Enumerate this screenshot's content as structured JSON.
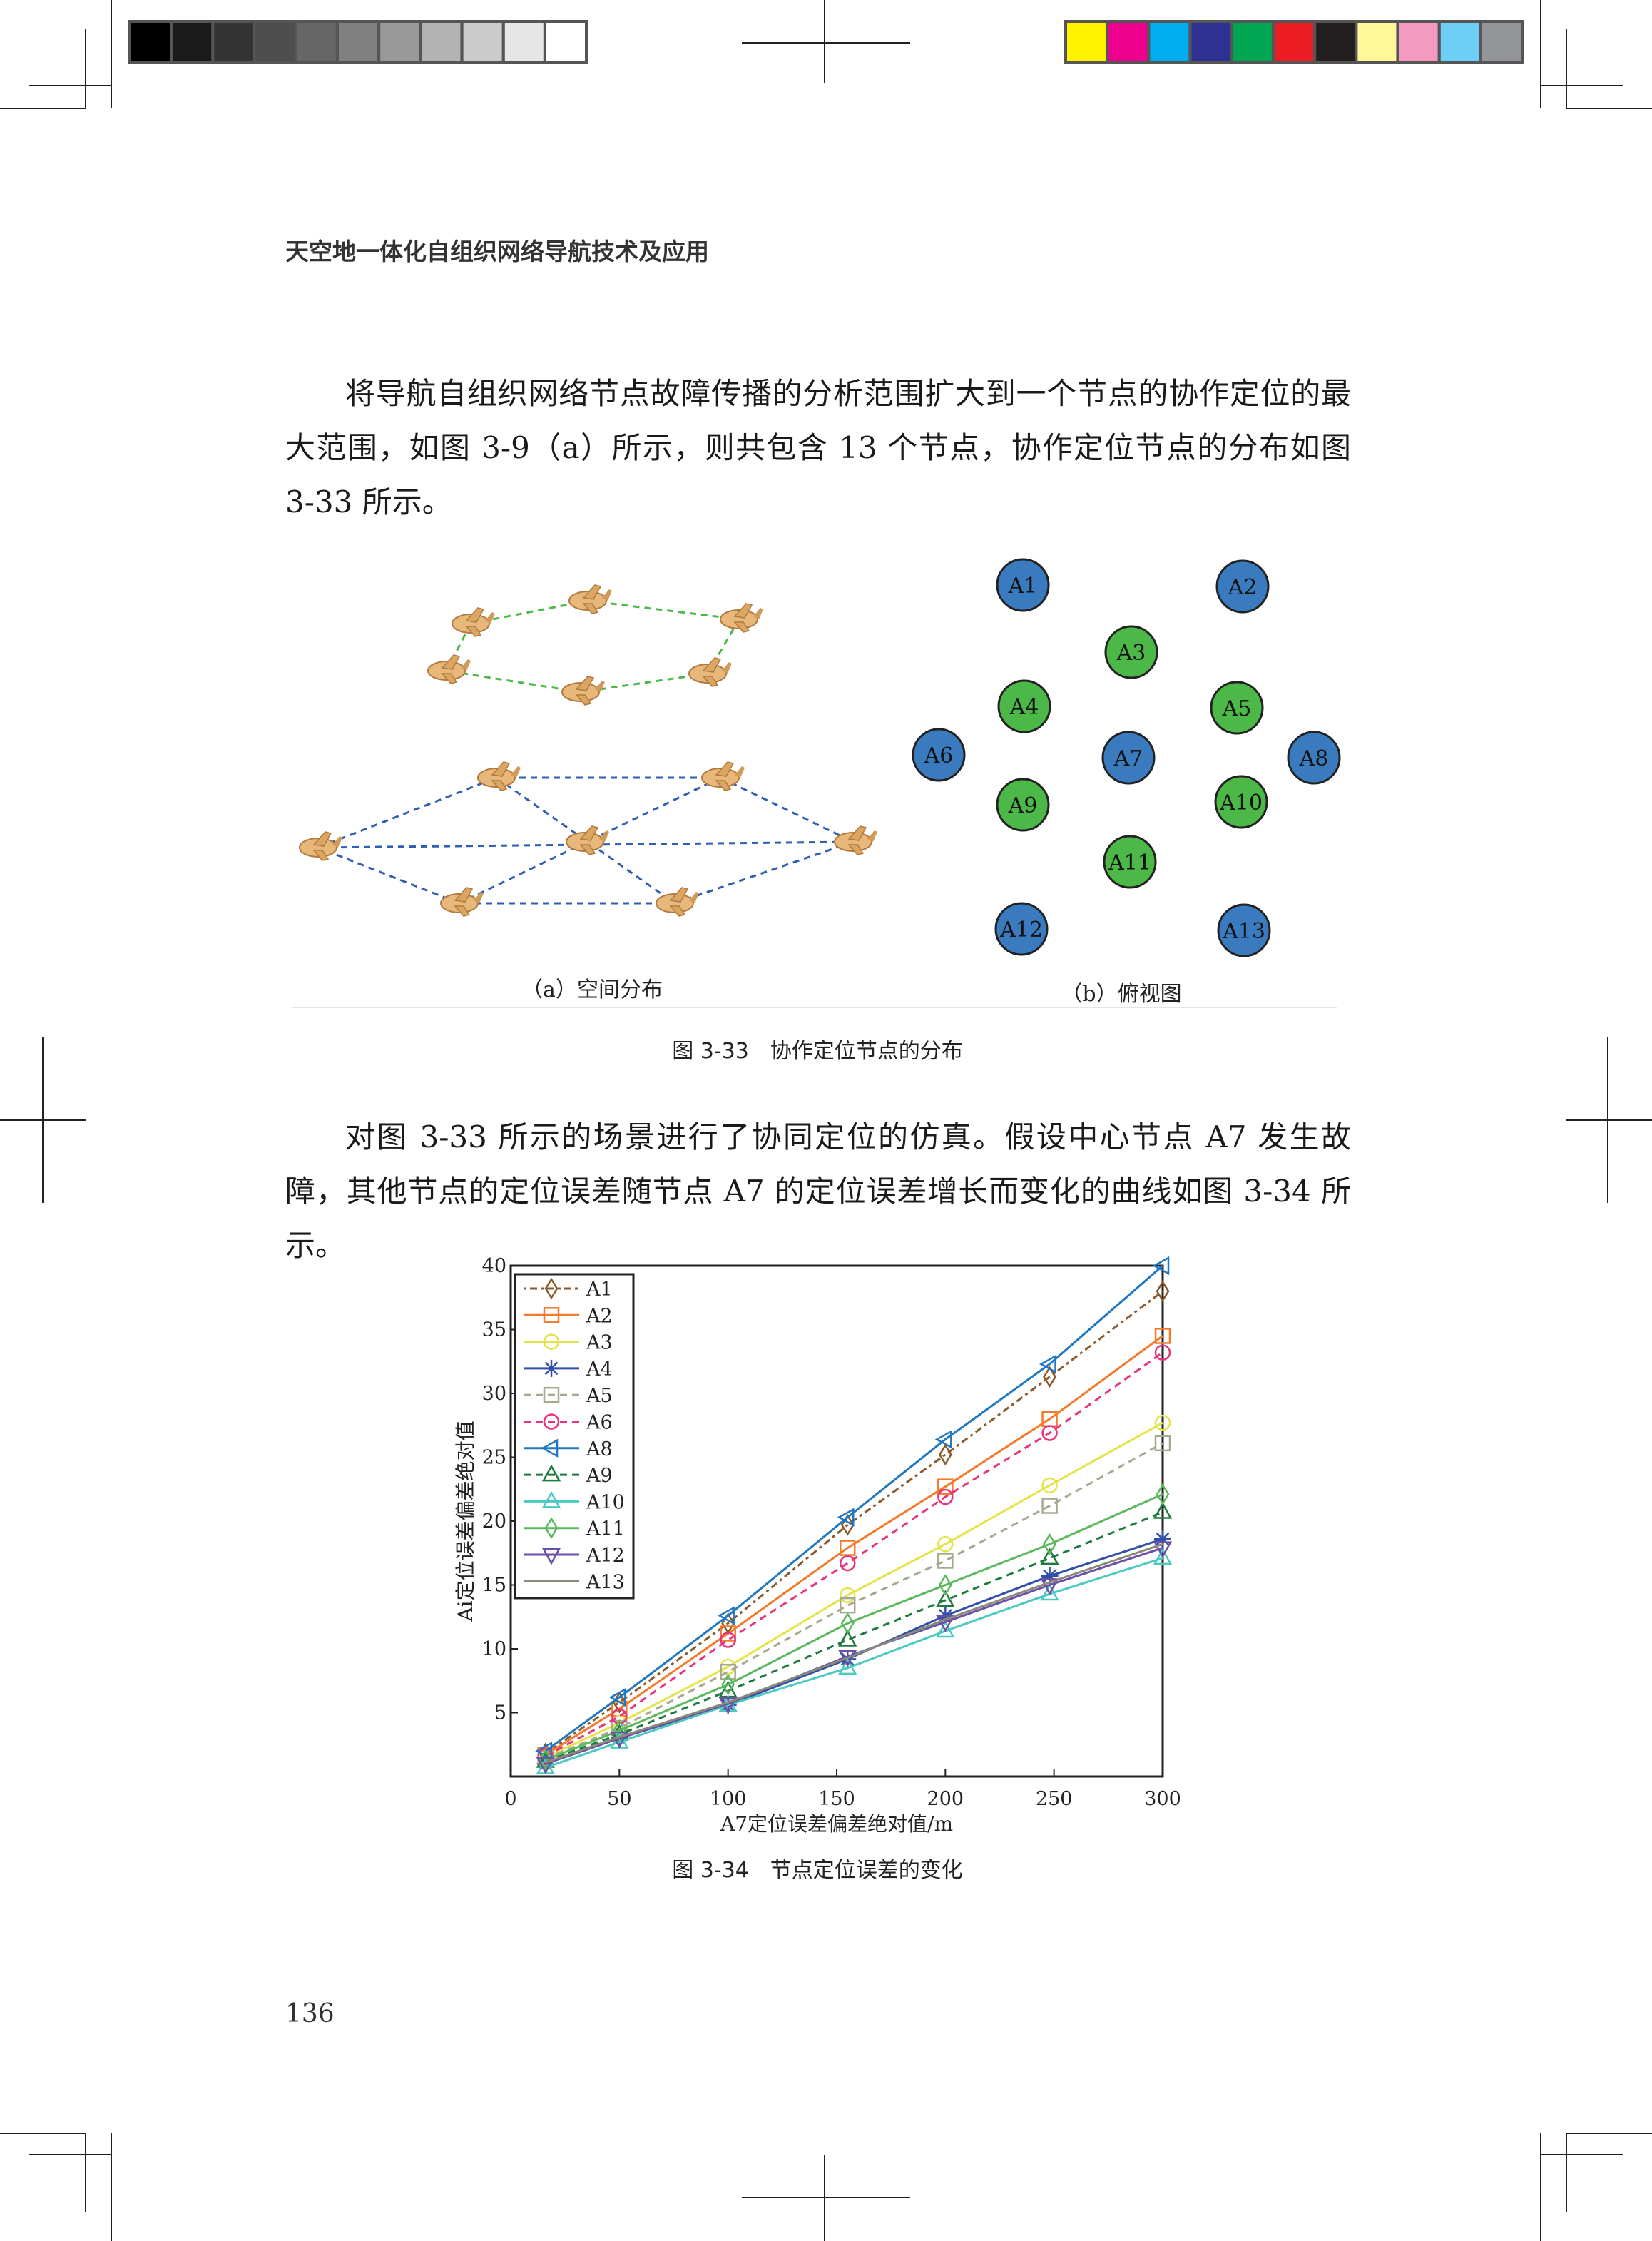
{
  "header": {
    "running_title": "天空地一体化自组织网络导航技术及应用"
  },
  "body": {
    "paragraph_1": "将导航自组织网络节点故障传播的分析范围扩大到一个节点的协作定位的最大范围，如图 3-9（a）所示，则共包含 13 个节点，协作定位节点的分布如图 3-33 所示。",
    "paragraph_2": "对图 3-33 所示的场景进行了协同定位的仿真。假设中心节点 A7 发生故障，其他节点的定位误差随节点 A7 的定位误差增长而变化的曲线如图 3-34 所示。"
  },
  "figure_3_33": {
    "subcaption_a": "（a）空间分布",
    "subcaption_b": "（b）俯视图",
    "caption": "图 3-33　协作定位节点的分布",
    "nodes": [
      {
        "label": "A1",
        "color": "#3A7BC0"
      },
      {
        "label": "A2",
        "color": "#3A7BC0"
      },
      {
        "label": "A3",
        "color": "#4CB848"
      },
      {
        "label": "A4",
        "color": "#4CB848"
      },
      {
        "label": "A5",
        "color": "#4CB848"
      },
      {
        "label": "A6",
        "color": "#3A7BC0"
      },
      {
        "label": "A7",
        "color": "#3A7BC0"
      },
      {
        "label": "A8",
        "color": "#3A7BC0"
      },
      {
        "label": "A9",
        "color": "#4CB848"
      },
      {
        "label": "A10",
        "color": "#4CB848"
      },
      {
        "label": "A11",
        "color": "#4CB848"
      },
      {
        "label": "A12",
        "color": "#3A7BC0"
      },
      {
        "label": "A13",
        "color": "#3A7BC0"
      }
    ],
    "upper_layer_link_color": "#4CB848",
    "lower_layer_link_color": "#2F5FB0"
  },
  "figure_3_34": {
    "caption": "图 3-34　节点定位误差的变化"
  },
  "chart_data": {
    "type": "line",
    "title": "",
    "xlabel": "A7定位误差偏差绝对值/m",
    "ylabel": "Ai定位误差偏差绝对值",
    "xlim": [
      0,
      300
    ],
    "ylim": [
      0,
      40
    ],
    "xticks": [
      "0",
      "50",
      "100",
      "150",
      "200",
      "250",
      "300"
    ],
    "yticks": [
      "5",
      "10",
      "15",
      "20",
      "25",
      "30",
      "35",
      "40"
    ],
    "grid": false,
    "legend_position": "top-left",
    "x": [
      16,
      50,
      100,
      155,
      200,
      248,
      300
    ],
    "series": [
      {
        "name": "A1",
        "color": "#8B5A2B",
        "dash": "dashdot",
        "marker": "diamond",
        "values": [
          1.8,
          5.8,
          12.0,
          19.7,
          25.2,
          31.3,
          38.0
        ]
      },
      {
        "name": "A2",
        "color": "#F47A2A",
        "dash": "solid",
        "marker": "square",
        "values": [
          1.7,
          5.3,
          11.2,
          17.9,
          22.7,
          28.0,
          34.5
        ]
      },
      {
        "name": "A3",
        "color": "#E3E34A",
        "dash": "solid",
        "marker": "circle",
        "values": [
          1.5,
          4.2,
          8.6,
          14.2,
          18.2,
          22.8,
          27.7
        ]
      },
      {
        "name": "A4",
        "color": "#2F4FA8",
        "dash": "solid",
        "marker": "star",
        "values": [
          1.0,
          3.0,
          5.6,
          9.2,
          12.6,
          15.7,
          18.6
        ]
      },
      {
        "name": "A5",
        "color": "#A8A890",
        "dash": "dashed",
        "marker": "square",
        "values": [
          1.4,
          3.8,
          8.2,
          13.4,
          16.9,
          21.2,
          26.1
        ]
      },
      {
        "name": "A6",
        "color": "#E8337F",
        "dash": "dashed",
        "marker": "circle",
        "values": [
          1.6,
          4.7,
          10.7,
          16.7,
          21.9,
          26.9,
          33.2
        ]
      },
      {
        "name": "A8",
        "color": "#1F78C1",
        "dash": "solid",
        "marker": "triangle-left",
        "values": [
          2.0,
          6.2,
          12.6,
          20.3,
          26.4,
          32.3,
          40.0
        ]
      },
      {
        "name": "A9",
        "color": "#1E7A3E",
        "dash": "dashed",
        "marker": "triangle-up",
        "values": [
          1.2,
          3.3,
          6.7,
          10.7,
          13.8,
          17.1,
          20.7
        ]
      },
      {
        "name": "A10",
        "color": "#4CC9C0",
        "dash": "solid",
        "marker": "triangle-up",
        "values": [
          0.7,
          2.7,
          5.6,
          8.5,
          11.4,
          14.3,
          17.1
        ]
      },
      {
        "name": "A11",
        "color": "#5CB85C",
        "dash": "solid",
        "marker": "diamond",
        "values": [
          1.3,
          3.6,
          7.2,
          12.0,
          15.0,
          18.2,
          22.1
        ]
      },
      {
        "name": "A12",
        "color": "#6B4FA8",
        "dash": "solid",
        "marker": "triangle-down",
        "values": [
          1.0,
          3.0,
          5.7,
          9.4,
          12.1,
          15.0,
          17.9
        ]
      },
      {
        "name": "A13",
        "color": "#8A8A78",
        "dash": "solid",
        "marker": "none",
        "values": [
          1.1,
          3.1,
          5.8,
          9.3,
          12.3,
          15.2,
          18.2
        ]
      }
    ]
  },
  "print_marks": {
    "gray_scale": [
      "#000000",
      "#1a1a1a",
      "#333333",
      "#4d4d4d",
      "#666666",
      "#808080",
      "#999999",
      "#b3b3b3",
      "#cccccc",
      "#e6e6e6",
      "#ffffff"
    ],
    "color_bar": [
      "#FFF200",
      "#EC008C",
      "#00AEEF",
      "#2E3192",
      "#00A651",
      "#ED1C24",
      "#231F20",
      "#FFF799",
      "#F49AC1",
      "#6DCFF6",
      "#939598"
    ]
  },
  "footer": {
    "page_number": "136"
  }
}
